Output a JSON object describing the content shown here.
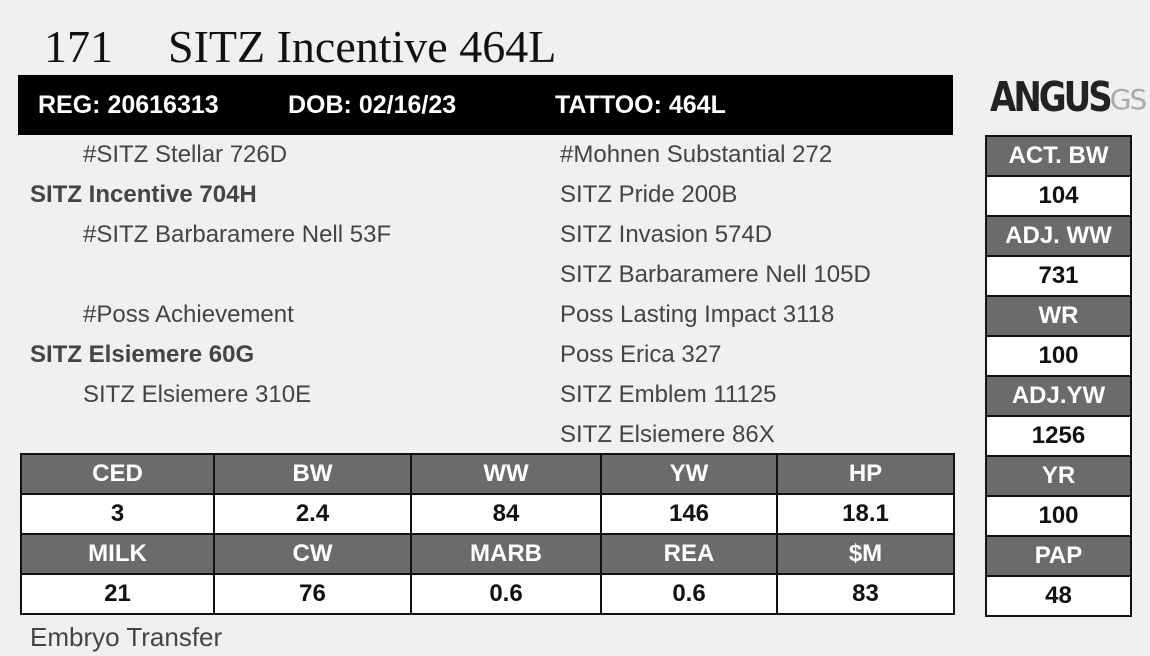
{
  "header": {
    "lot": "171",
    "name": "SITZ Incentive 464L"
  },
  "info_bar": [
    "REG: 20616313",
    "DOB: 02/16/23",
    "TATTOO: 464L"
  ],
  "logo": {
    "main": "ANGUS",
    "suffix": "GS"
  },
  "pedigree": {
    "sire_side": {
      "sire": "#SITZ Stellar 726D",
      "name": "SITZ Incentive 704H",
      "dam": "#SITZ Barbaramere Nell 53F"
    },
    "dam_side": {
      "sire": "#Poss Achievement",
      "name": "SITZ Elsiemere 60G",
      "dam": "SITZ Elsiemere 310E"
    },
    "third_generation": [
      "#Mohnen Substantial 272",
      "SITZ Pride 200B",
      "SITZ Invasion 574D",
      "SITZ Barbaramere Nell 105D",
      "Poss Lasting Impact 3118",
      "Poss Erica 327",
      "SITZ Emblem 11125",
      "SITZ Elsiemere 86X"
    ]
  },
  "performance": [
    {
      "label": "ACT. BW",
      "value": 104
    },
    {
      "label": "ADJ. WW",
      "value": 731
    },
    {
      "label": "WR",
      "value": 100
    },
    {
      "label": "ADJ.YW",
      "value": 1256
    },
    {
      "label": "YR",
      "value": 100
    },
    {
      "label": "PAP",
      "value": 48
    }
  ],
  "epd_table": {
    "rows": [
      [
        "CED",
        "BW",
        "WW",
        "YW",
        "HP"
      ],
      [
        3,
        2.4,
        84,
        146,
        18.1
      ],
      [
        "MILK",
        "CW",
        "MARB",
        "REA",
        "$M"
      ],
      [
        21,
        76,
        0.6,
        0.6,
        83
      ]
    ]
  },
  "footer": "Embryo Transfer"
}
